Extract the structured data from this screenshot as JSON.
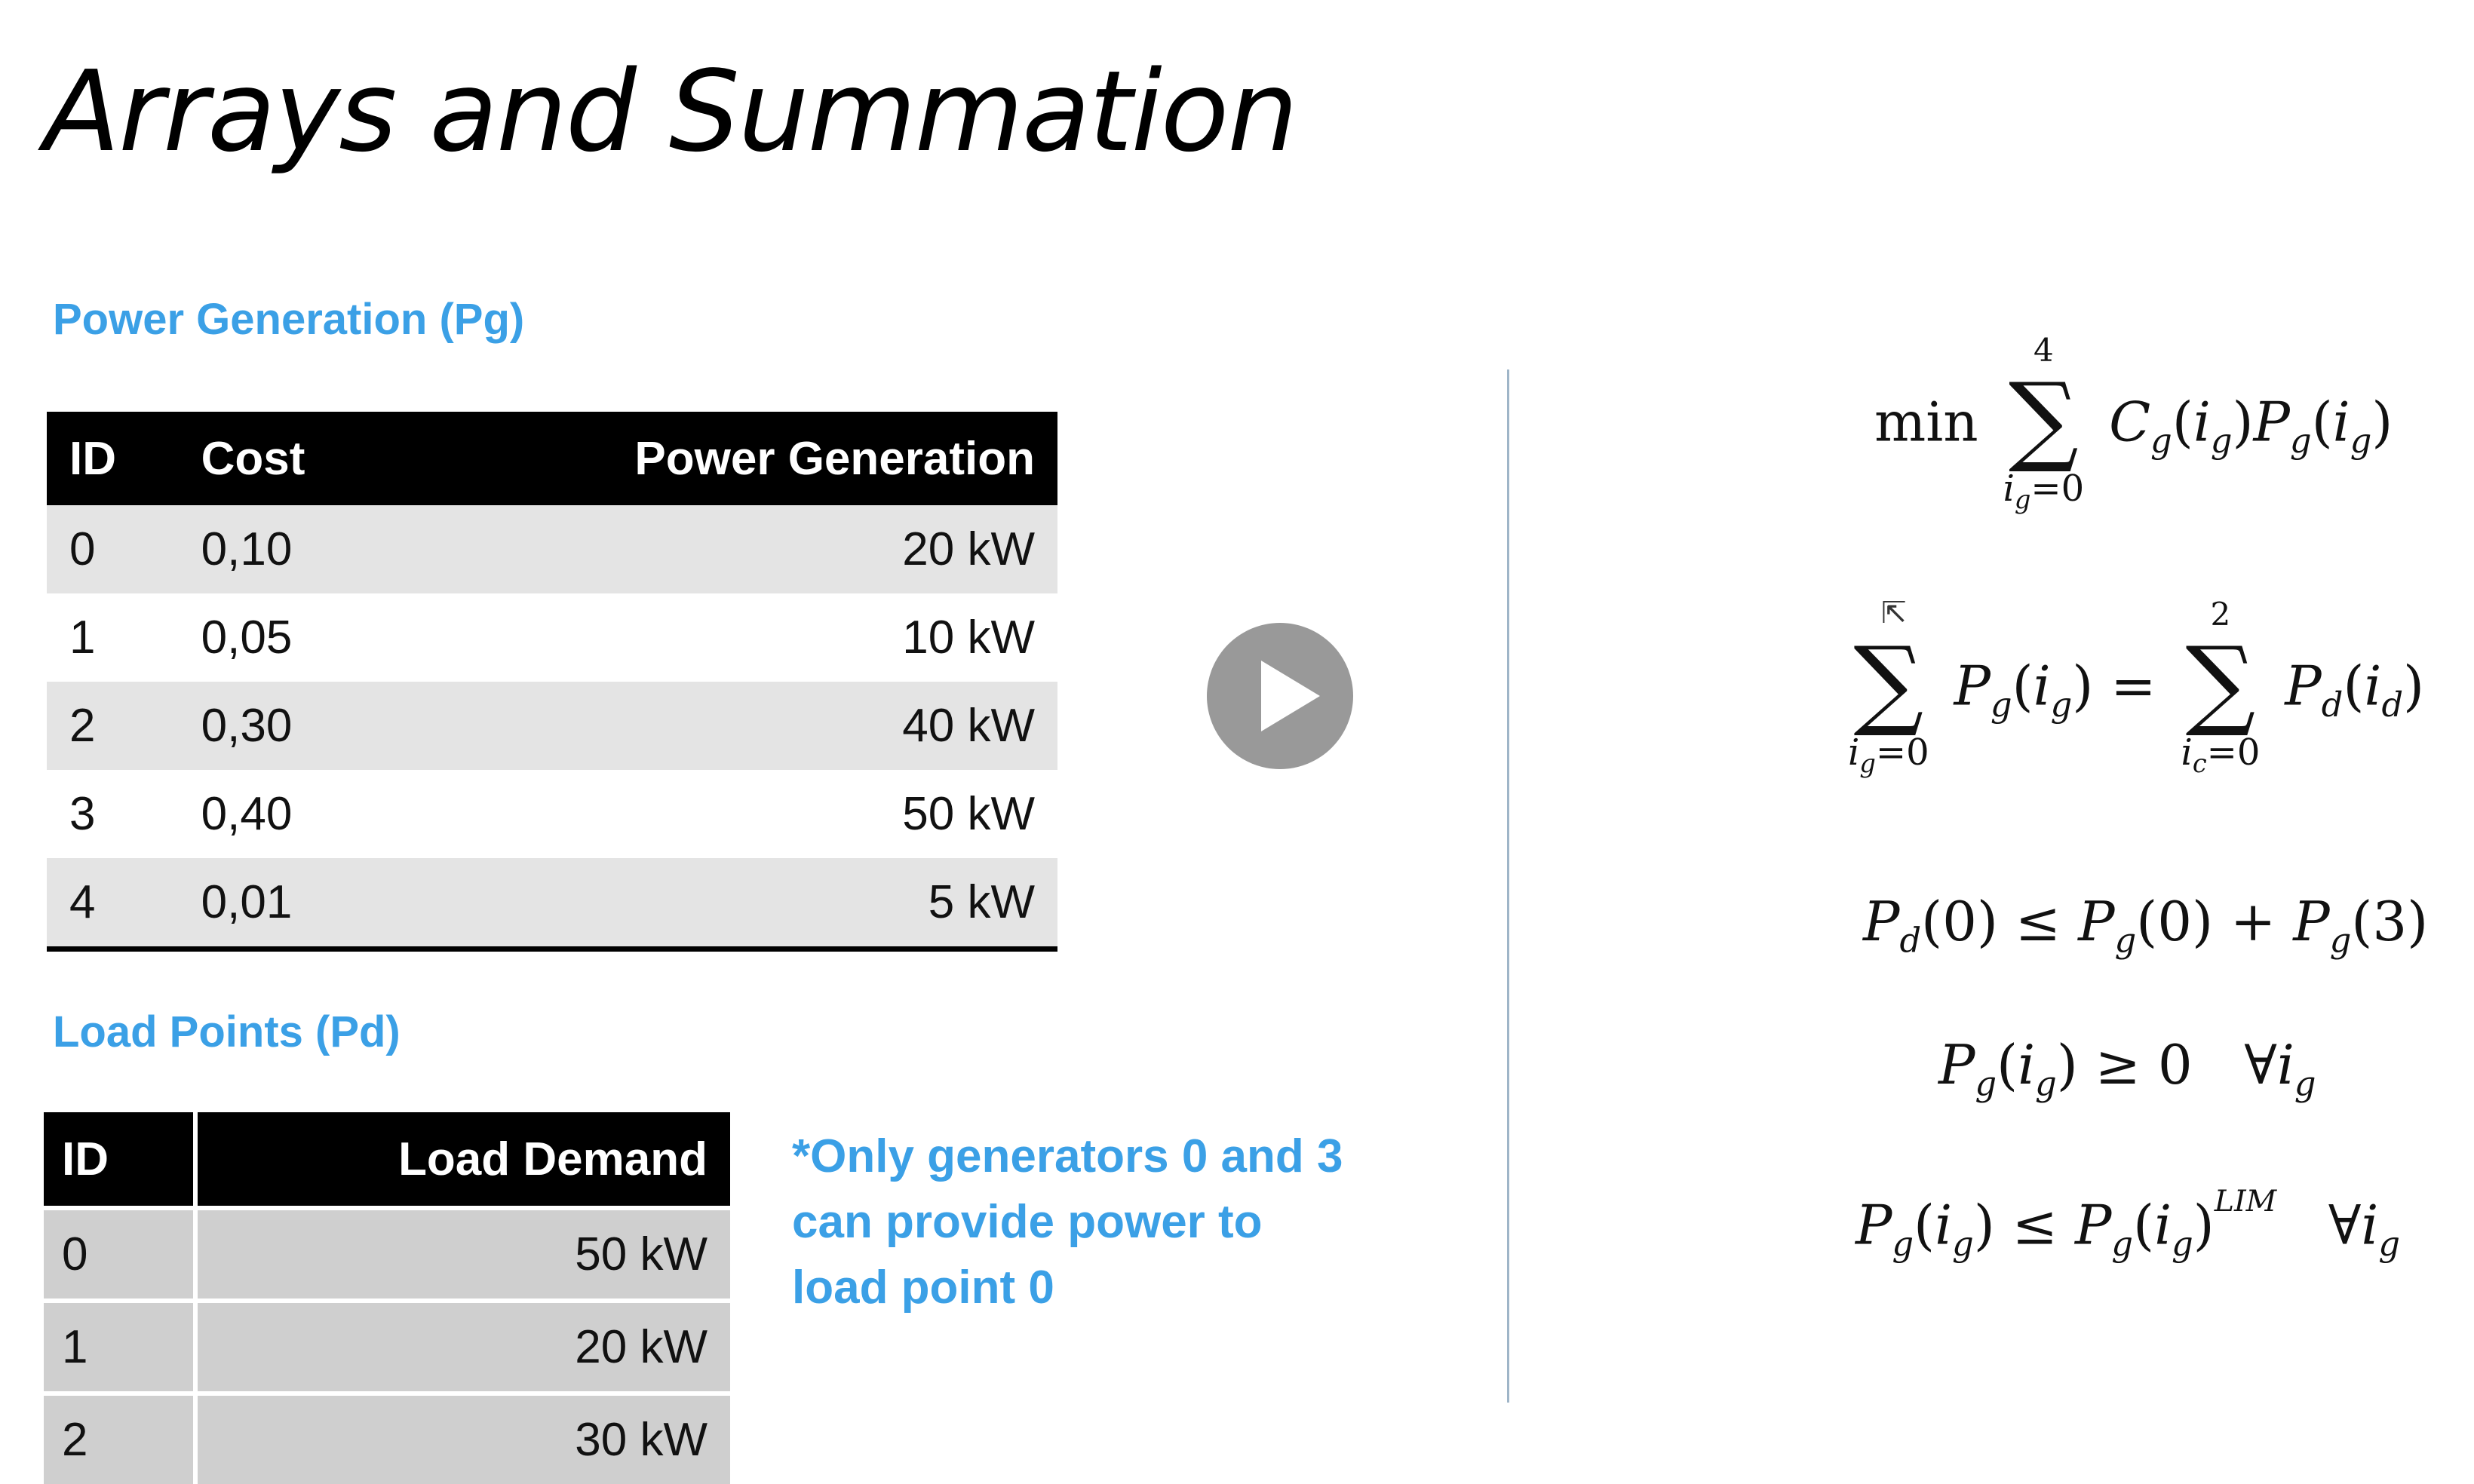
{
  "slide": {
    "title": "Arrays and Summation"
  },
  "generation": {
    "heading": "Power Generation (Pg)",
    "columns": [
      "ID",
      "Cost",
      "Power Generation"
    ],
    "rows": [
      {
        "id": "0",
        "cost": "0,10",
        "power": "20 kW"
      },
      {
        "id": "1",
        "cost": "0,05",
        "power": "10 kW"
      },
      {
        "id": "2",
        "cost": "0,30",
        "power": "40 kW"
      },
      {
        "id": "3",
        "cost": "0,40",
        "power": "50 kW"
      },
      {
        "id": "4",
        "cost": "0,01",
        "power": "5 kW"
      }
    ]
  },
  "load": {
    "heading": "Load Points (Pd)",
    "columns": [
      "ID",
      "Load Demand"
    ],
    "rows": [
      {
        "id": "0",
        "demand": "50 kW"
      },
      {
        "id": "1",
        "demand": "20 kW"
      },
      {
        "id": "2",
        "demand": "30 kW"
      }
    ]
  },
  "note": {
    "text": "*Only generators 0 and 3 can provide power to load point 0"
  },
  "equations": {
    "objective": {
      "prefix": "min",
      "upper": "4",
      "lower": "i",
      "lower_sub": "g",
      "lower_tail": "=0"
    },
    "balance": {
      "left_upper": "",
      "left_lower": "i",
      "left_lower_sub": "g",
      "right_upper": "2",
      "right_lower": "i",
      "right_lower_sub": "c"
    },
    "constraint1": "P_d(0) ≤ P_g(0) + P_g(3)",
    "constraint2": "P_g(i_g) ≥ 0 ∀i_g",
    "constraint3_sup": "LIM"
  },
  "player": {
    "icon": "play-icon"
  },
  "colors": {
    "accent": "#3ba0e6",
    "header_bg": "#000000",
    "row_alt": "#e4e4e4",
    "load_row": "#cfcfcf",
    "divider": "#9fb5c8"
  }
}
